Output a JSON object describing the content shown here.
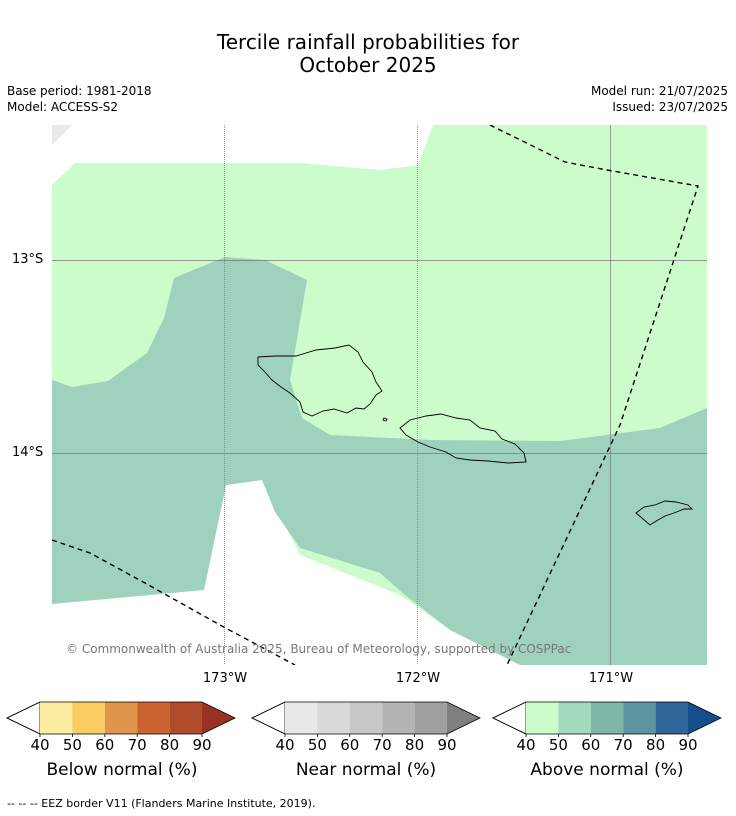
{
  "title": {
    "line1": "Tercile rainfall probabilities for",
    "line2": "October 2025"
  },
  "meta": {
    "base_period": "Base period: 1981-2018",
    "model": "Model: ACCESS-S2",
    "model_run": "Model run: 21/07/2025",
    "issued": "Issued: 23/07/2025"
  },
  "map": {
    "lat_labels": [
      "13°S",
      "14°S"
    ],
    "lon_labels": [
      "173°W",
      "172°W",
      "171°W"
    ],
    "copyright": "© Commonwealth of Australia 2025, Bureau of Meteorology, supported by COSPPac",
    "colors": {
      "above_40_50": "#ccfccc",
      "above_50_60": "#9ed2bd",
      "coast": "#000000",
      "eez": "#000000",
      "grid": "#777777"
    }
  },
  "colorbars": [
    {
      "title": "Below normal (%)",
      "ticks": [
        "40",
        "50",
        "60",
        "70",
        "80",
        "90"
      ],
      "colors": [
        "#fdeda0",
        "#fccd62",
        "#e0964a",
        "#cc6230",
        "#b04c2a",
        "#993220"
      ]
    },
    {
      "title": "Near normal (%)",
      "ticks": [
        "40",
        "50",
        "60",
        "70",
        "80",
        "90"
      ],
      "colors": [
        "#e8e8e8",
        "#d9d9d9",
        "#c8c8c8",
        "#b4b4b4",
        "#a0a0a0",
        "#808080"
      ]
    },
    {
      "title": "Above normal (%)",
      "ticks": [
        "40",
        "50",
        "60",
        "70",
        "80",
        "90"
      ],
      "colors": [
        "#ccfccc",
        "#a3d9bc",
        "#80b6aa",
        "#5c95a0",
        "#306699",
        "#164e8c"
      ]
    }
  ],
  "footer": "--  --  -- EEZ border V11 (Flanders Marine Institute, 2019)."
}
